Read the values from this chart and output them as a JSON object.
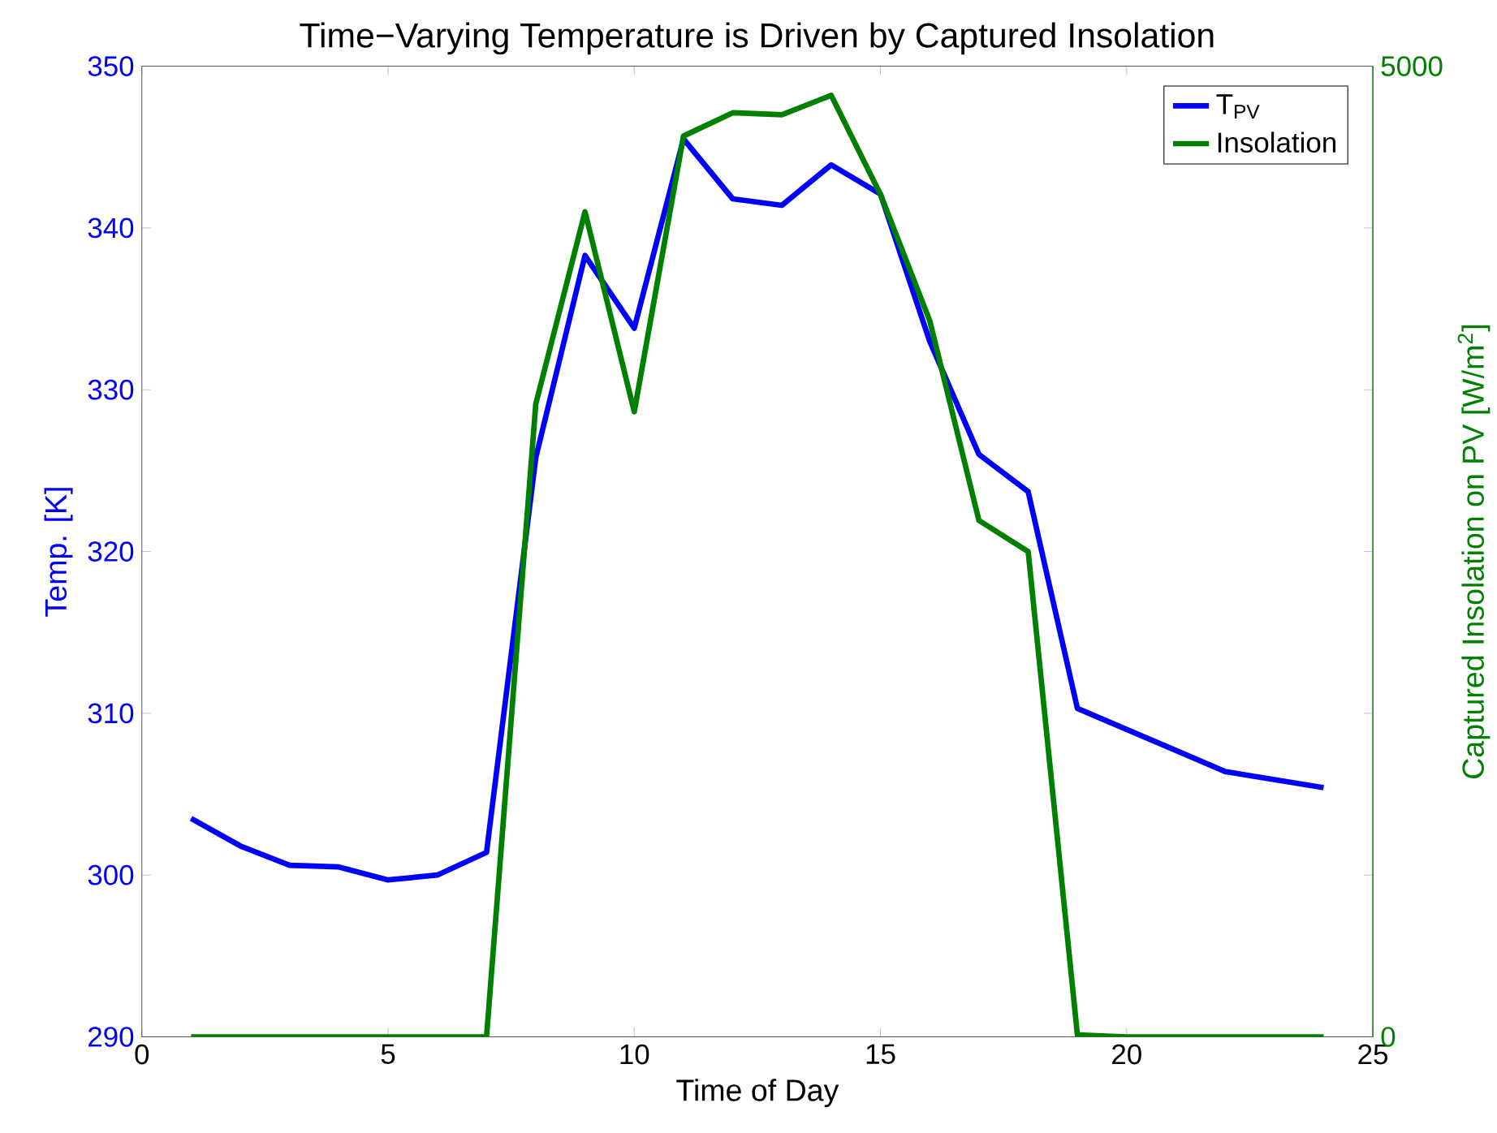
{
  "chart_data": {
    "type": "line",
    "title": "Time−Varying Temperature is Driven by Captured Insolation",
    "xlabel": "Time of Day",
    "ylabel": "Temp. [K]",
    "y2label": "Captured Insolation on PV [W/m$^{2}$]",
    "x": [
      1,
      2,
      3,
      4,
      5,
      6,
      7,
      8,
      9,
      10,
      11,
      12,
      13,
      14,
      15,
      16,
      17,
      18,
      19,
      20,
      21,
      22,
      23,
      24
    ],
    "series": [
      {
        "name": "T$_{PV}$",
        "color": "#0000ff",
        "values": [
          303.5,
          301.8,
          300.6,
          300.5,
          299.7,
          300.0,
          301.4,
          325.8,
          338.3,
          333.8,
          345.5,
          341.8,
          341.4,
          343.9,
          342.1,
          333.0,
          326.0,
          323.7,
          310.3,
          309.0,
          307.7,
          306.4,
          305.9,
          305.4
        ]
      },
      {
        "name": "Insolation",
        "color": "#008000",
        "axis": "y2",
        "values": [
          0,
          0,
          0,
          0,
          0,
          0,
          0,
          3260,
          4250,
          3220,
          4640,
          4760,
          4750,
          4850,
          4340,
          3690,
          2660,
          2500,
          10,
          0,
          0,
          0,
          0,
          0
        ]
      }
    ],
    "xlim": [
      0,
      25
    ],
    "xticks": [
      0,
      5,
      10,
      15,
      20,
      25
    ],
    "ylim": [
      290,
      350
    ],
    "yticks": [
      290,
      300,
      310,
      320,
      330,
      340,
      350
    ],
    "y2lim": [
      0,
      5000
    ],
    "y2ticks": [
      0,
      5000
    ],
    "legend": "top right"
  }
}
